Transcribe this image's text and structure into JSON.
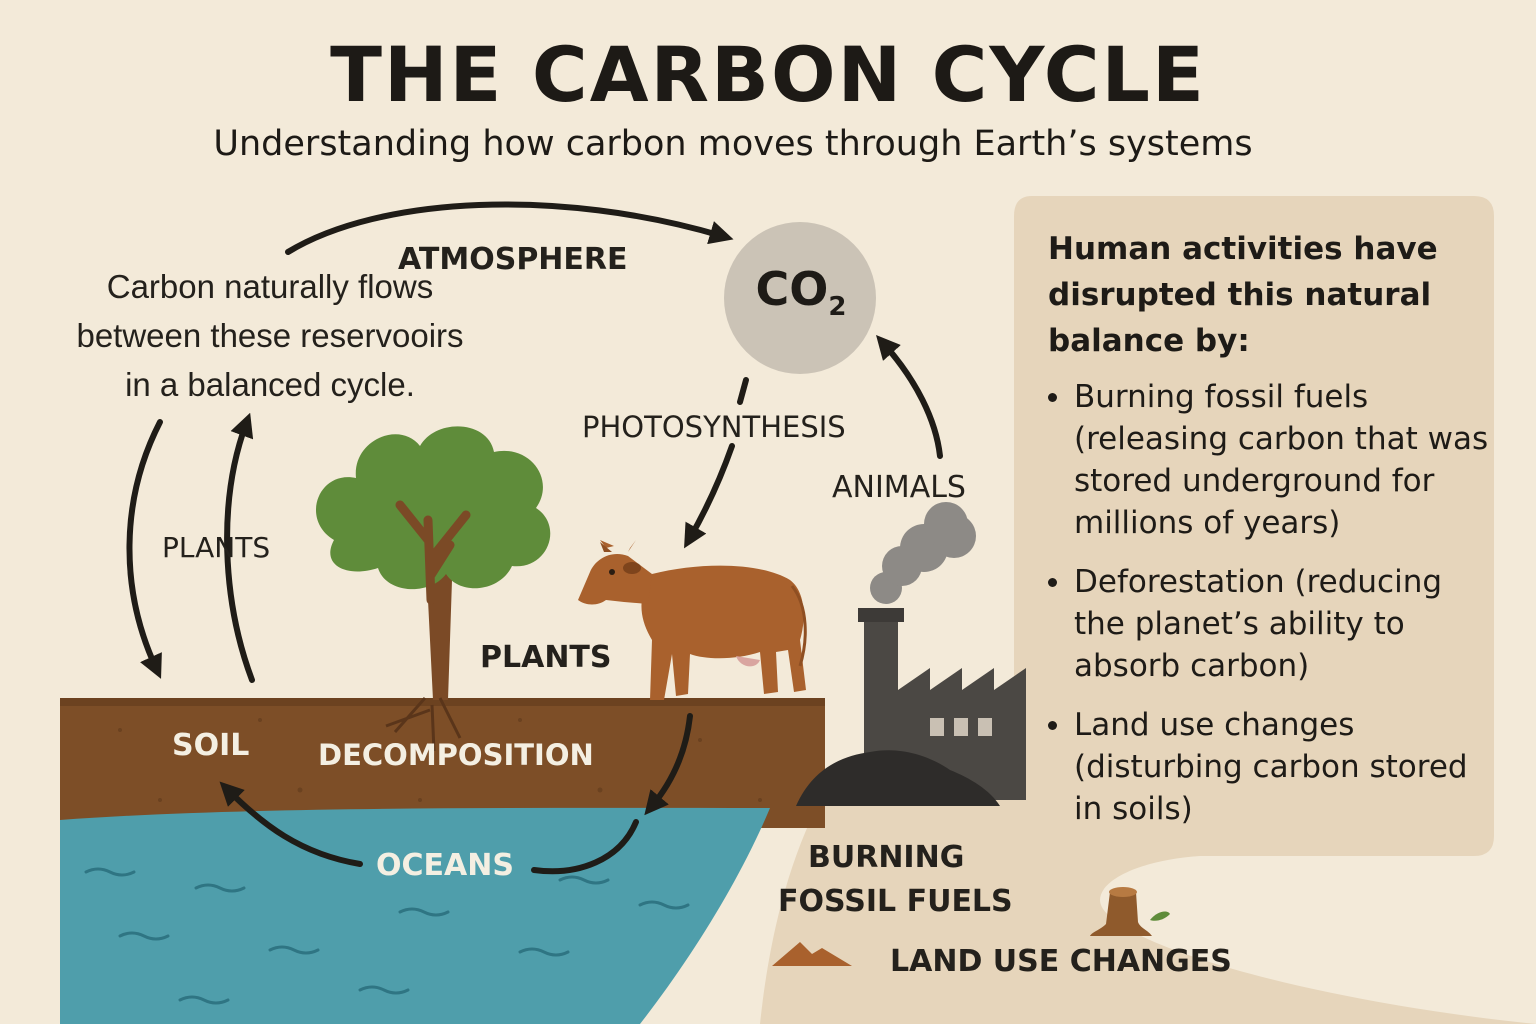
{
  "header": {
    "title": "THE CARBON CYCLE",
    "subtitle": "Understanding how carbon moves through Earth’s systems"
  },
  "intro": {
    "lines": [
      "Carbon naturally flows",
      "between these reservooirs",
      "in a balanced cycle."
    ]
  },
  "labels": {
    "atmosphere": "ATMOSPHERE",
    "co2_main": "CO",
    "co2_sub": "2",
    "photosynthesis": "PHOTOSYNTHESIS",
    "animals": "ANIMALS",
    "plants_left": "PLANTS",
    "plants_center": "PLANTS",
    "soil": "SOIL",
    "decomposition": "DECOMPOSITION",
    "oceans": "OCEANS",
    "burning_line1": "BURNING",
    "burning_line2": "FOSSIL FUELS",
    "land_use": "LAND USE CHANGES"
  },
  "panel": {
    "heading_lines": [
      "Human activities have",
      "disrupted this natural",
      "balance by:"
    ],
    "bullets": [
      {
        "lines": [
          "Burning fossil fuels",
          "(releasing carbon that was",
          "stored underground for",
          "millions of years)"
        ]
      },
      {
        "lines": [
          "Deforestation (reducing",
          "the planet’s ability to",
          "absorb carbon)"
        ]
      },
      {
        "lines": [
          "Land use changes",
          "(disturbing carbon stored",
          "in soils)"
        ]
      }
    ]
  },
  "icons": {
    "tree": "tree-icon",
    "cow": "cow-icon",
    "factory": "factory-icon",
    "smoke": "smoke-icon",
    "stump": "tree-stump-icon",
    "mound": "dirt-mound-icon",
    "co2_circle": "co2-circle-icon"
  },
  "colors": {
    "background": "#f3ead9",
    "panel": "#e6d5bb",
    "soil": "#7d4e27",
    "ocean": "#4f9eab",
    "tree_canopy": "#5f8c3a",
    "cow": "#a9612d",
    "factory": "#4b4844",
    "co2_circle": "#cbc3b6"
  }
}
